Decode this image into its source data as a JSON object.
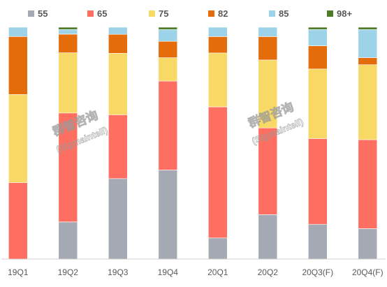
{
  "watermark": {
    "line1": "群智咨询",
    "line2": "(Sigmaintell)"
  },
  "chart_data": {
    "type": "bar",
    "stacked": true,
    "normalized_percent": true,
    "categories": [
      "19Q1",
      "19Q2",
      "19Q3",
      "19Q4",
      "20Q1",
      "20Q2",
      "20Q3(F)",
      "20Q4(F)"
    ],
    "series": [
      {
        "name": "55",
        "color": "#a5a9b3",
        "values": [
          0,
          16,
          34,
          38,
          9,
          19,
          15,
          13
        ]
      },
      {
        "name": "65",
        "color": "#ff6f61",
        "values": [
          33,
          47,
          27,
          38,
          56,
          37,
          37,
          38
        ]
      },
      {
        "name": "75",
        "color": "#f9d965",
        "values": [
          38,
          26,
          26,
          10,
          23,
          29,
          30,
          32
        ]
      },
      {
        "name": "82",
        "color": "#e46c0a",
        "values": [
          25,
          8,
          8,
          7,
          7,
          10,
          10,
          3
        ]
      },
      {
        "name": "85",
        "color": "#9dd3e8",
        "values": [
          4,
          2,
          3,
          5,
          4,
          4,
          7,
          12
        ]
      },
      {
        "name": "98+",
        "color": "#4f7a28",
        "values": [
          0,
          1,
          0,
          1,
          0,
          0,
          1,
          1
        ]
      }
    ],
    "ylim": [
      0,
      100
    ],
    "grid": false,
    "legend": "top"
  }
}
